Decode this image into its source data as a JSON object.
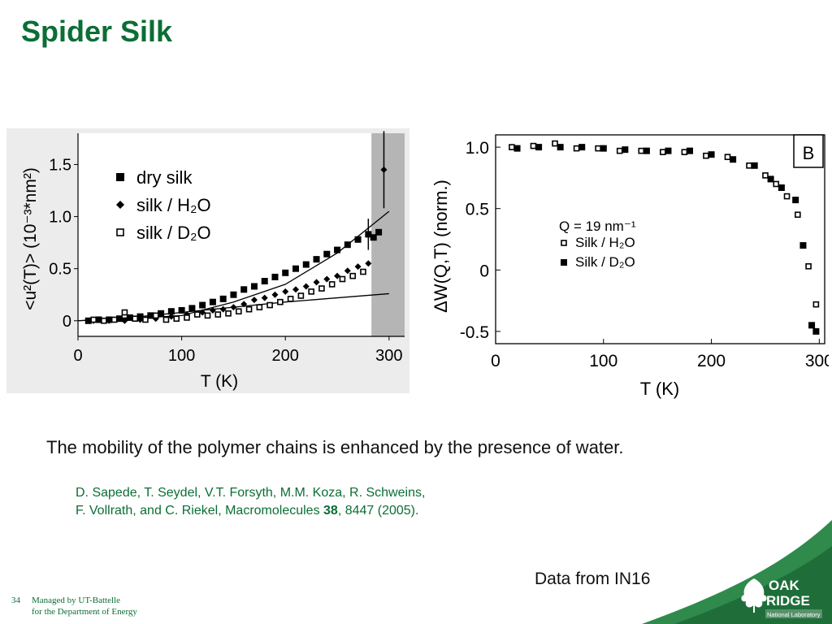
{
  "slide": {
    "title": "Spider Silk",
    "caption": "The mobility of the polymer chains is enhanced by the presence of water.",
    "reference_line1": "D. Sapede, T. Seydel, V.T. Forsyth, M.M. Koza, R. Schweins,",
    "reference_line2_a": "F. Vollrath, and C. Riekel, Macromolecules ",
    "reference_volume": "38",
    "reference_line2_b": ", 8447 (2005).",
    "data_source": "Data from IN16",
    "footer_page": "34",
    "footer_line1": "Managed by UT-Battelle",
    "footer_line2": "for the Department of Energy",
    "logo_line1": "OAK",
    "logo_line2": "RIDGE",
    "logo_line3": "National Laboratory"
  },
  "colors": {
    "title_green": "#0b6e35",
    "swoosh_green": "#2f8a4c",
    "shaded_region": "#b5b5b5"
  },
  "chart_data": [
    {
      "type": "scatter",
      "ylabel": "<u²(T)> (10⁻³*nm²)",
      "xlabel": "T (K)",
      "xlim": [
        0,
        315
      ],
      "ylim": [
        -0.15,
        1.8
      ],
      "x_ticks": [
        "0",
        "100",
        "200",
        "300"
      ],
      "y_ticks": [
        "0",
        "0.5",
        "1.0",
        "1.5"
      ],
      "shaded_x_range": [
        283,
        315
      ],
      "legend_placement": "top-left",
      "series": [
        {
          "name": "dry silk",
          "marker": "filled-square",
          "x": [
            10,
            20,
            30,
            40,
            50,
            60,
            70,
            80,
            90,
            100,
            110,
            120,
            130,
            140,
            150,
            160,
            170,
            180,
            190,
            200,
            210,
            220,
            230,
            240,
            250,
            260,
            270,
            280,
            285,
            290
          ],
          "y": [
            0,
            0.01,
            0.01,
            0.02,
            0.03,
            0.04,
            0.05,
            0.07,
            0.09,
            0.1,
            0.12,
            0.15,
            0.18,
            0.21,
            0.25,
            0.3,
            0.33,
            0.38,
            0.42,
            0.46,
            0.5,
            0.54,
            0.59,
            0.64,
            0.68,
            0.73,
            0.78,
            0.83,
            0.8,
            0.85
          ]
        },
        {
          "name": "silk / H₂O",
          "marker": "filled-diamond",
          "x": [
            15,
            30,
            45,
            60,
            75,
            90,
            105,
            120,
            130,
            140,
            150,
            160,
            170,
            180,
            190,
            200,
            210,
            220,
            230,
            240,
            250,
            260,
            270,
            280,
            295
          ],
          "y": [
            0,
            0,
            0,
            0.01,
            0.02,
            0.04,
            0.06,
            0.08,
            0.1,
            0.11,
            0.13,
            0.16,
            0.2,
            0.22,
            0.25,
            0.28,
            0.3,
            0.33,
            0.37,
            0.4,
            0.43,
            0.48,
            0.52,
            0.55,
            1.45
          ],
          "error_bars": [
            {
              "x": 280,
              "low": 0.68,
              "high": 0.98
            },
            {
              "x": 295,
              "low": 1.08,
              "high": 1.82
            }
          ]
        },
        {
          "name": "silk / D₂O",
          "marker": "open-square",
          "x": [
            15,
            25,
            35,
            45,
            55,
            65,
            75,
            85,
            95,
            105,
            115,
            125,
            135,
            145,
            155,
            165,
            175,
            185,
            195,
            205,
            215,
            225,
            235,
            245,
            255,
            265,
            275
          ],
          "y": [
            0.01,
            0,
            0.01,
            0.08,
            0.02,
            0.01,
            0.05,
            0.01,
            0.02,
            0.03,
            0.06,
            0.05,
            0.06,
            0.07,
            0.09,
            0.11,
            0.13,
            0.15,
            0.18,
            0.21,
            0.24,
            0.28,
            0.31,
            0.35,
            0.4,
            0.43,
            0.47
          ]
        }
      ],
      "fit_lines": [
        {
          "x": [
            0,
            50,
            100,
            150,
            200,
            250,
            300
          ],
          "y": [
            0,
            0.02,
            0.05,
            0.18,
            0.35,
            0.65,
            1.05
          ]
        },
        {
          "x": [
            0,
            50,
            100,
            150,
            200,
            250,
            300
          ],
          "y": [
            0,
            0.03,
            0.08,
            0.13,
            0.18,
            0.22,
            0.26
          ]
        }
      ]
    },
    {
      "type": "scatter",
      "ylabel": "ΔW(Q,T) (norm.)",
      "xlabel": "T (K)",
      "xlim": [
        0,
        305
      ],
      "ylim": [
        -0.6,
        1.1
      ],
      "x_ticks": [
        "0",
        "100",
        "200",
        "300"
      ],
      "y_ticks": [
        "1.0",
        "0.5",
        "0",
        "-0.5"
      ],
      "panel_label": "B",
      "legend_title": "Q = 19 nm⁻¹",
      "legend_placement": "center",
      "series": [
        {
          "name": "Silk / H₂O",
          "marker": "open-square",
          "x": [
            15,
            35,
            55,
            75,
            95,
            115,
            135,
            155,
            175,
            195,
            215,
            235,
            250,
            260,
            270,
            280,
            290,
            297
          ],
          "y": [
            1.0,
            1.01,
            1.03,
            0.99,
            0.99,
            0.97,
            0.97,
            0.96,
            0.96,
            0.93,
            0.92,
            0.85,
            0.77,
            0.7,
            0.6,
            0.45,
            0.03,
            -0.28
          ]
        },
        {
          "name": "Silk / D₂O",
          "marker": "filled-square",
          "x": [
            20,
            40,
            60,
            80,
            100,
            120,
            140,
            160,
            180,
            200,
            220,
            240,
            255,
            265,
            278,
            285,
            293,
            297
          ],
          "y": [
            0.99,
            1.0,
            1.0,
            1.0,
            0.99,
            0.98,
            0.97,
            0.97,
            0.97,
            0.94,
            0.9,
            0.85,
            0.74,
            0.67,
            0.57,
            0.2,
            -0.45,
            -0.5
          ]
        }
      ]
    }
  ]
}
